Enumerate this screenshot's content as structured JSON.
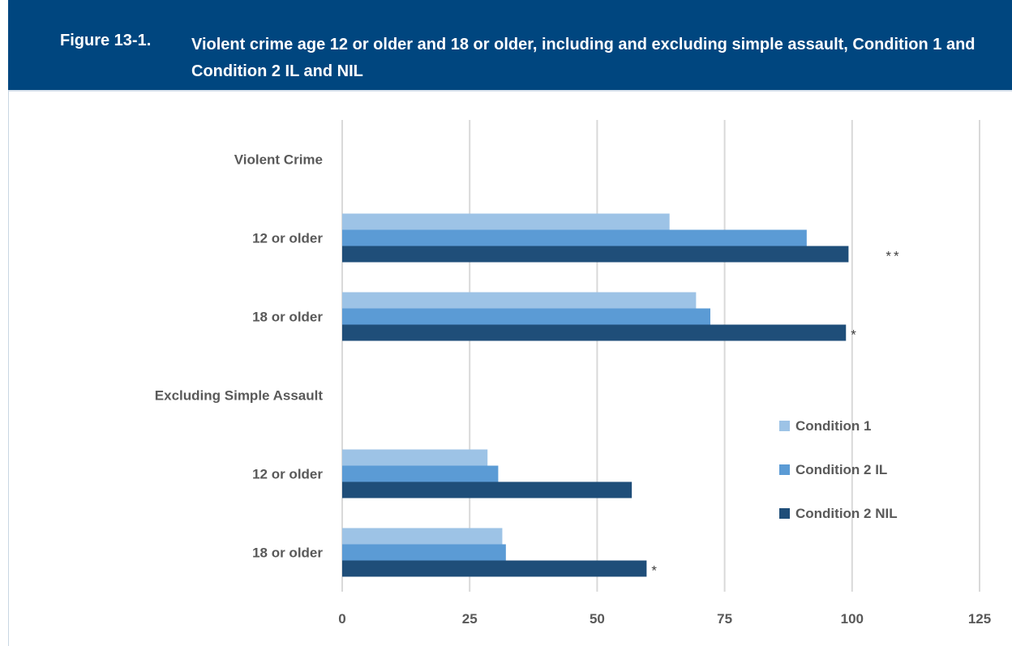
{
  "header": {
    "figure_number": "Figure 13-1.",
    "title": "Violent crime age 12 or older and 18 or older, including and excluding simple assault, Condition 1 and Condition 2 IL and NIL"
  },
  "colors": {
    "header_bg": "#00467f",
    "condition1": "#9dc3e6",
    "condition2_il": "#5b9bd5",
    "condition2_nil": "#1f4e79",
    "gridline": "#d9d9d9",
    "label_text": "#595959"
  },
  "chart_data": {
    "type": "bar",
    "orientation": "horizontal",
    "xlim": [
      0,
      125
    ],
    "x_ticks": [
      "0",
      "25",
      "50",
      "75",
      "100",
      "125"
    ],
    "grid": true,
    "legend_position": "right",
    "categories": [
      {
        "label": "Violent Crime",
        "is_group_header": true
      },
      {
        "label": "12 or older",
        "is_group_header": false
      },
      {
        "label": "18 or older",
        "is_group_header": false
      },
      {
        "label": "Excluding Simple Assault",
        "is_group_header": true
      },
      {
        "label": "12 or older",
        "is_group_header": false
      },
      {
        "label": "18 or older",
        "is_group_header": false
      }
    ],
    "series": [
      {
        "name": "Condition 1",
        "values": [
          null,
          64.2,
          69.4,
          null,
          28.5,
          31.4
        ]
      },
      {
        "name": "Condition 2 IL",
        "values": [
          null,
          91.1,
          72.2,
          null,
          30.6,
          32.1
        ]
      },
      {
        "name": "Condition 2 NIL",
        "values": [
          null,
          99.3,
          98.8,
          null,
          56.8,
          59.7
        ]
      }
    ],
    "annotations": [
      "",
      "**",
      "*",
      "",
      "",
      "*"
    ]
  }
}
